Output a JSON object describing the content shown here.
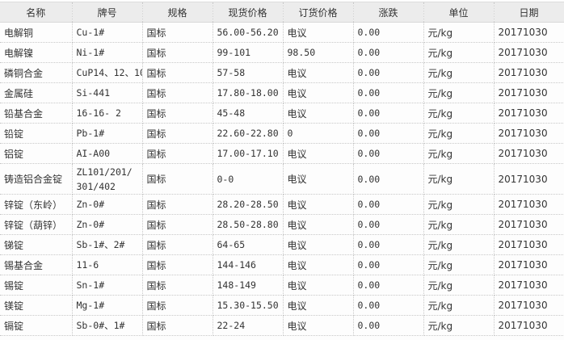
{
  "table": {
    "headers": [
      "名称",
      "牌号",
      "规格",
      "现货价格",
      "订货价格",
      "涨跌",
      "单位",
      "日期"
    ],
    "rows": [
      [
        "电解铜",
        "Cu-1#",
        "国标",
        "56.00-56.20",
        "电议",
        "0.00",
        "元/kg",
        "20171030"
      ],
      [
        "电解镍",
        "Ni-1#",
        "国标",
        "99-101",
        "98.50",
        "0.00",
        "元/kg",
        "20171030"
      ],
      [
        "磷铜合金",
        "CuP14、12、10",
        "国标",
        "57-58",
        "电议",
        "0.00",
        "元/kg",
        "20171030"
      ],
      [
        "金属硅",
        "Si-441",
        "国标",
        "17.80-18.00",
        "电议",
        "0.00",
        "元/kg",
        "20171030"
      ],
      [
        "铅基合金",
        "16-16- 2",
        "国标",
        "45-48",
        "电议",
        "0.00",
        "元/kg",
        "20171030"
      ],
      [
        "铅锭",
        "Pb-1#",
        "国标",
        "22.60-22.80",
        "0",
        "0.00",
        "元/kg",
        "20171030"
      ],
      [
        "铝锭",
        "AI-A00",
        "国标",
        "17.00-17.10",
        "电议",
        "0.00",
        "元/kg",
        "20171030"
      ],
      [
        "铸造铝合金锭",
        "ZL101/201/301/402",
        "国标",
        "0-0",
        "电议",
        "0.00",
        "元/kg",
        "20171030"
      ],
      [
        "锌锭（东岭）",
        "Zn-0#",
        "国标",
        "28.20-28.50",
        "电议",
        "0.00",
        "元/kg",
        "20171030"
      ],
      [
        "锌锭（葫锌）",
        "Zn-0#",
        "国标",
        "28.50-28.80",
        "电议",
        "0.00",
        "元/kg",
        "20171030"
      ],
      [
        "锑锭",
        "Sb-1#、2#",
        "国标",
        "64-65",
        "电议",
        "0.00",
        "元/kg",
        "20171030"
      ],
      [
        "锡基合金",
        "11-6",
        "国标",
        "144-146",
        "电议",
        "0.00",
        "元/kg",
        "20171030"
      ],
      [
        "锡锭",
        "Sn-1#",
        "国标",
        "148-149",
        "电议",
        "0.00",
        "元/kg",
        "20171030"
      ],
      [
        "镁锭",
        "Mg-1#",
        "国标",
        "15.30-15.50",
        "电议",
        "0.00",
        "元/kg",
        "20171030"
      ],
      [
        "镉锭",
        "Sb-0#、1#",
        "国标",
        "22-24",
        "电议",
        "0.00",
        "元/kg",
        "20171030"
      ]
    ]
  }
}
